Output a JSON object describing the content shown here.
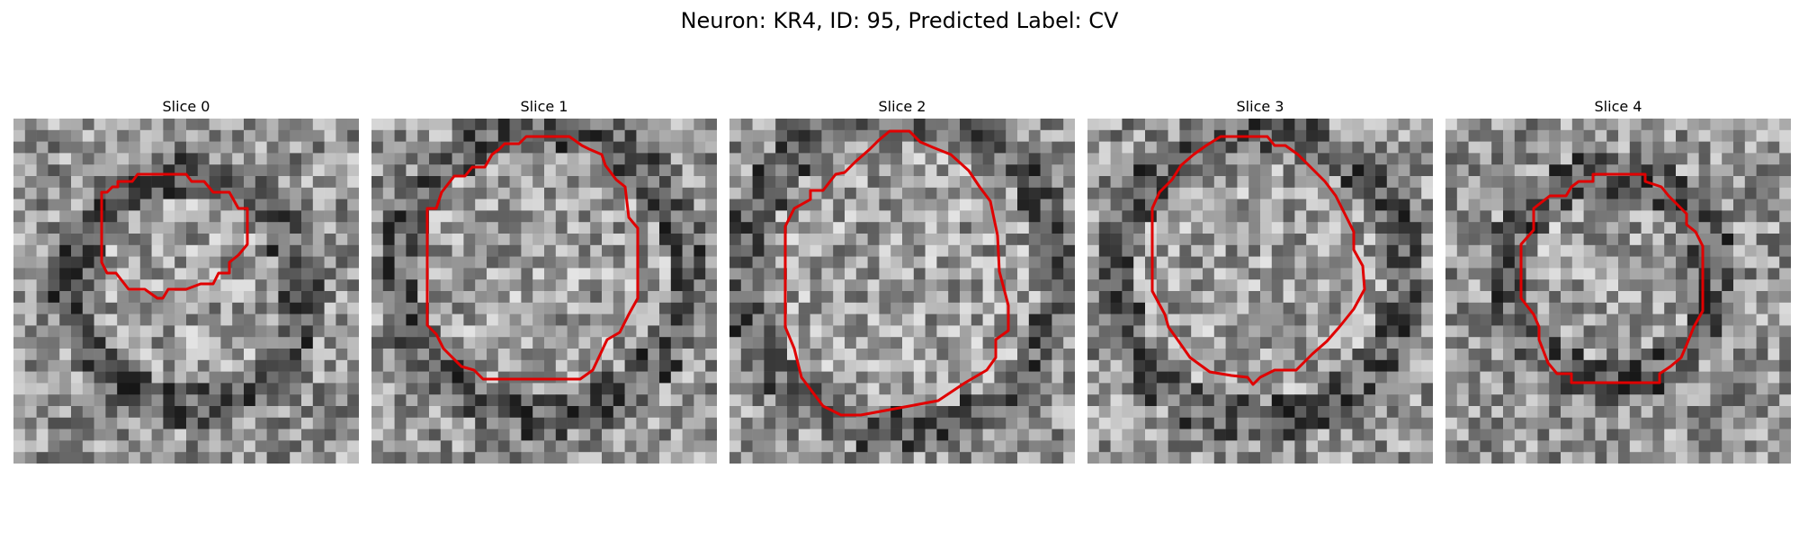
{
  "figure": {
    "suptitle": "Neuron: KR4, ID: 95, Predicted Label: CV",
    "panels": [
      {
        "title": "Slice 0"
      },
      {
        "title": "Slice 1"
      },
      {
        "title": "Slice 2"
      },
      {
        "title": "Slice 3"
      },
      {
        "title": "Slice 4"
      }
    ],
    "colormap": "gray",
    "contour_color": "#e00000"
  }
}
